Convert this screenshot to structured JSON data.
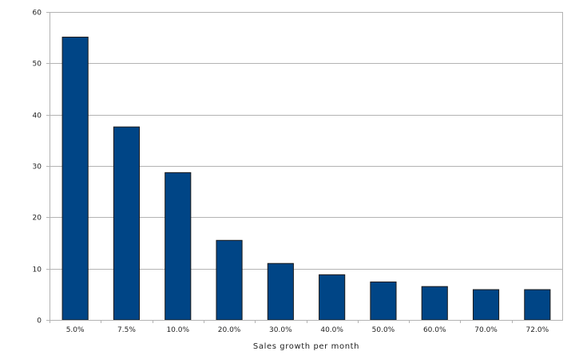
{
  "colors": {
    "bar_fill": "#004586",
    "bar_stroke": "#1a1a1a",
    "grid": "#b3b3b3",
    "axis": "#b3b3b3",
    "background": "#ffffff"
  },
  "chart_data": {
    "type": "bar",
    "categories": [
      "5.0%",
      "7.5%",
      "10.0%",
      "20.0%",
      "30.0%",
      "40.0%",
      "50.0%",
      "60.0%",
      "70.0%",
      "72.0%"
    ],
    "values": [
      55.1,
      37.6,
      28.7,
      15.5,
      11.0,
      8.8,
      7.4,
      6.5,
      5.9,
      5.9
    ],
    "xlabel": "Sales growth per month",
    "ylabel": "",
    "ylim": [
      0,
      60
    ],
    "yticks": [
      0,
      10,
      20,
      30,
      40,
      50,
      60
    ],
    "grid": true,
    "legend": "none"
  }
}
